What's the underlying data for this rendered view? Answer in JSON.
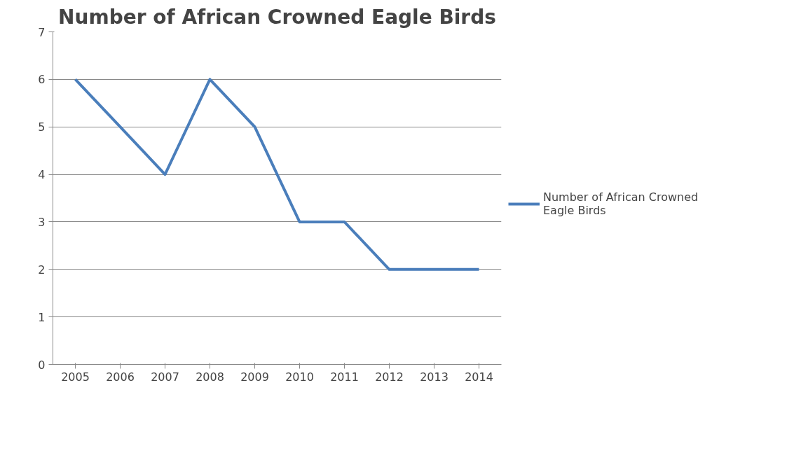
{
  "chart_data": {
    "type": "line",
    "title": "Number of African Crowned Eagle Birds",
    "categories": [
      "2005",
      "2006",
      "2007",
      "2008",
      "2009",
      "2010",
      "2011",
      "2012",
      "2013",
      "2014"
    ],
    "series": [
      {
        "name": "Number of African Crowned Eagle Birds",
        "color": "#4a7ebb",
        "values": [
          6,
          5,
          4,
          6,
          5,
          3,
          3,
          2,
          2,
          2
        ]
      }
    ],
    "ylim": [
      0,
      7
    ],
    "yticks": [
      0,
      1,
      2,
      3,
      4,
      5,
      6,
      7
    ],
    "grid": "y",
    "legend": "right",
    "marker": "none",
    "line_style": "solid"
  }
}
